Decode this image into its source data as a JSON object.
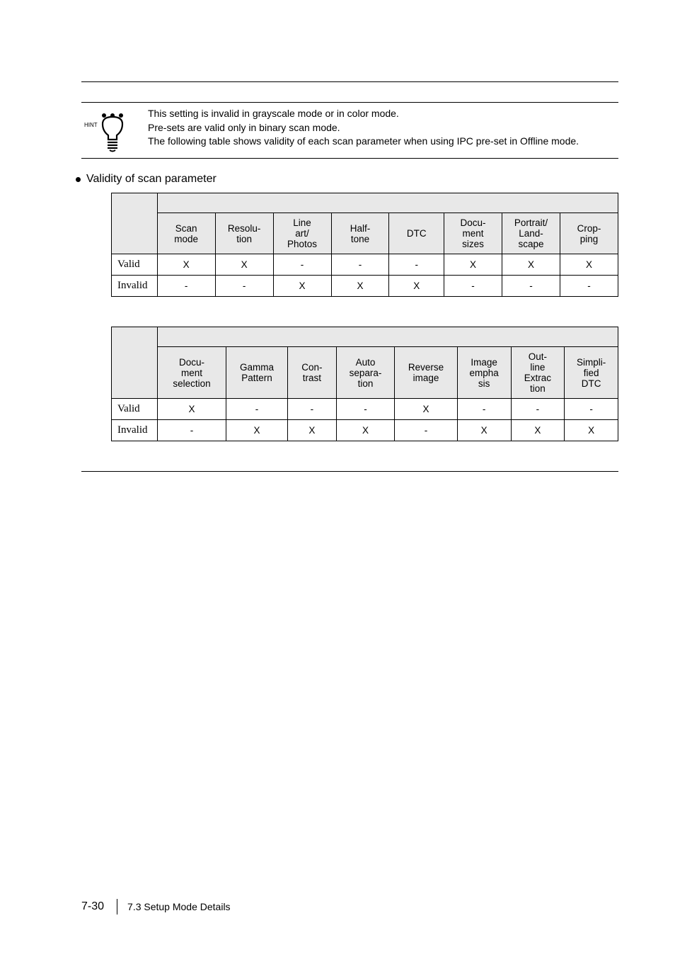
{
  "hint": {
    "label": "HINT",
    "lines": [
      "This setting is invalid in grayscale mode or in color mode.",
      "Pre-sets are valid only in binary scan mode.",
      "The following table shows validity of each scan parameter when using IPC pre-set in Offline mode."
    ]
  },
  "section_title": "Validity of scan parameter",
  "table1": {
    "cols": [
      "Scan mode",
      "Resolu-tion",
      "Line art/ Photos",
      "Half-tone",
      "DTC",
      "Docu-ment sizes",
      "Portrait/ Land-scape",
      "Crop-ping"
    ],
    "rows": [
      {
        "label": "Valid",
        "cells": [
          "X",
          "X",
          "-",
          "-",
          "-",
          "X",
          "X",
          "X"
        ]
      },
      {
        "label": "Invalid",
        "cells": [
          "-",
          "-",
          "X",
          "X",
          "X",
          "-",
          "-",
          "-"
        ]
      }
    ],
    "widths": [
      60,
      76,
      76,
      76,
      76,
      72,
      76,
      76,
      76
    ]
  },
  "table2": {
    "cols": [
      "Docu-ment selection",
      "Gamma Pattern",
      "Con-trast",
      "Auto separa-tion",
      "Reverse image",
      "Image empha sis",
      "Out-line Extrac tion",
      "Simpli-fied DTC"
    ],
    "rows": [
      {
        "label": "Valid",
        "cells": [
          "X",
          "-",
          "-",
          "-",
          "X",
          "-",
          "-",
          "-"
        ]
      },
      {
        "label": "Invalid",
        "cells": [
          "-",
          "X",
          "X",
          "X",
          "-",
          "X",
          "X",
          "X"
        ]
      }
    ],
    "widths": [
      60,
      90,
      80,
      64,
      76,
      82,
      70,
      70,
      70
    ]
  },
  "footer": {
    "page": "7-30",
    "section": "7.3 Setup Mode Details"
  }
}
